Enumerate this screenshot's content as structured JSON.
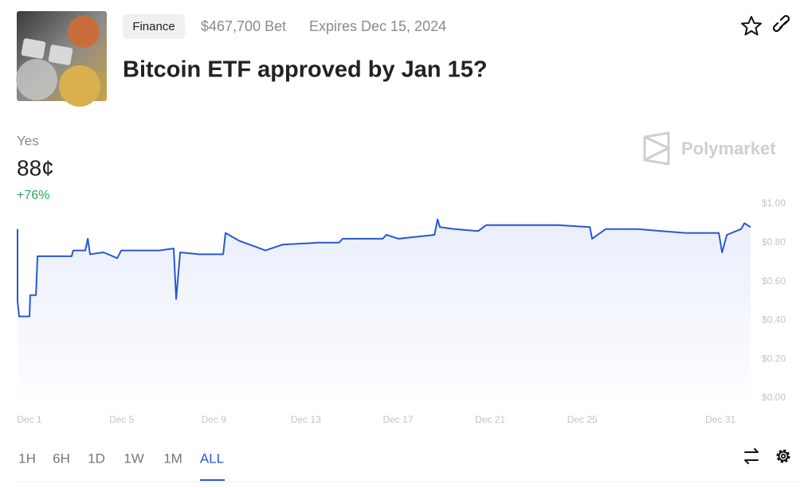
{
  "header": {
    "tag": "Finance",
    "volume": "$467,700 Bet",
    "expires": "Expires Dec 15, 2024",
    "title": "Bitcoin ETF approved by Jan 15?"
  },
  "outcome": {
    "name": "Yes",
    "price": "88¢",
    "change": "+76%"
  },
  "brand": "Polymarket",
  "chart_data": {
    "type": "line",
    "x": [
      -0.52,
      -0.52,
      -0.45,
      0,
      0.03,
      0.28,
      0.35,
      1.83,
      1.9,
      2.42,
      2.53,
      2.63,
      3.22,
      3.81,
      3.98,
      5.64,
      6.26,
      6.37,
      6.54,
      7.37,
      8.41,
      8.51,
      9.1,
      9.79,
      10.24,
      11.0,
      12.56,
      13.43,
      13.6,
      15.33,
      15.5,
      16.02,
      17.58,
      17.72,
      17.82,
      18.44,
      19.48,
      19.83,
      21.56,
      22.94,
      24.33,
      24.43,
      25.02,
      26.4,
      27.44,
      28.48,
      29.0,
      29.93,
      30.07,
      30.28,
      30.9,
      31.04,
      31.31
    ],
    "series": [
      {
        "name": "Yes",
        "color": "#2858d6",
        "values": [
          0.87,
          0.5,
          0.42,
          0.42,
          0.53,
          0.53,
          0.73,
          0.73,
          0.76,
          0.76,
          0.82,
          0.74,
          0.75,
          0.72,
          0.76,
          0.76,
          0.77,
          0.51,
          0.75,
          0.74,
          0.74,
          0.85,
          0.81,
          0.78,
          0.76,
          0.79,
          0.8,
          0.8,
          0.82,
          0.82,
          0.84,
          0.82,
          0.84,
          0.92,
          0.88,
          0.87,
          0.86,
          0.89,
          0.89,
          0.89,
          0.88,
          0.82,
          0.87,
          0.87,
          0.86,
          0.85,
          0.85,
          0.85,
          0.75,
          0.84,
          0.87,
          0.9,
          0.88
        ]
      }
    ],
    "xlim": [
      -0.52,
      31.31
    ],
    "xticks": [
      {
        "value": 0,
        "label": "Dec 1"
      },
      {
        "value": 4,
        "label": "Dec 5"
      },
      {
        "value": 8,
        "label": "Dec 9"
      },
      {
        "value": 12,
        "label": "Dec 13"
      },
      {
        "value": 16,
        "label": "Dec 17"
      },
      {
        "value": 20,
        "label": "Dec 21"
      },
      {
        "value": 24,
        "label": "Dec 25"
      },
      {
        "value": 30,
        "label": "Dec 31"
      }
    ],
    "ylim": [
      0,
      1
    ],
    "yticks": [
      {
        "value": 0,
        "label": "$0.00"
      },
      {
        "value": 0.2,
        "label": "$0.20"
      },
      {
        "value": 0.4,
        "label": "$0.40"
      },
      {
        "value": 0.6,
        "label": "$0.60"
      },
      {
        "value": 0.8,
        "label": "$0.80"
      },
      {
        "value": 1,
        "label": "$1.00"
      }
    ],
    "grid": false
  },
  "time_range": {
    "options": [
      "1H",
      "6H",
      "1D",
      "1W",
      "1M",
      "ALL"
    ],
    "active": 5
  }
}
